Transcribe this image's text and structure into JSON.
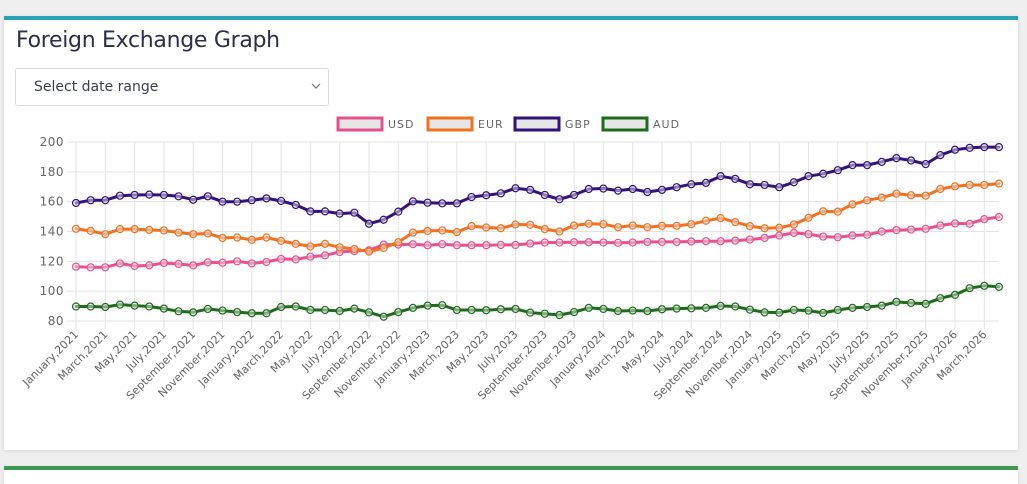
{
  "page": {
    "title": "Foreign Exchange Graph",
    "date_range_select": {
      "placeholder": "Select date range"
    },
    "colors": {
      "card_border_top": "#2aa3b5",
      "second_card_border_top": "#3d9a50",
      "background": "#efefef"
    }
  },
  "chart_data": {
    "type": "line",
    "title": "",
    "xlabel": "",
    "ylabel": "",
    "ylim": [
      80,
      200
    ],
    "yticks": [
      80,
      100,
      120,
      140,
      160,
      180,
      200
    ],
    "grid": true,
    "legend_position": "top",
    "x": [
      "January,2021",
      "February,2021",
      "March,2021",
      "April,2021",
      "May,2021",
      "June,2021",
      "July,2021",
      "August,2021",
      "September,2021",
      "October,2021",
      "November,2021",
      "December,2021",
      "January,2022",
      "February,2022",
      "March,2022",
      "April,2022",
      "May,2022",
      "June,2022",
      "July,2022",
      "August,2022",
      "September,2022",
      "October,2022",
      "November,2022",
      "December,2022",
      "January,2023",
      "February,2023",
      "March,2023",
      "April,2023",
      "May,2023",
      "June,2023",
      "July,2023",
      "August,2023",
      "September,2023",
      "October,2023",
      "November,2023",
      "December,2023",
      "January,2024",
      "February,2024",
      "March,2024",
      "April,2024",
      "May,2024",
      "June,2024",
      "July,2024",
      "August,2024",
      "September,2024",
      "October,2024",
      "November,2024",
      "December,2024",
      "January,2025",
      "February,2025",
      "March,2025",
      "April,2025",
      "May,2025",
      "June,2025",
      "July,2025",
      "August,2025",
      "September,2025",
      "October,2025",
      "November,2025",
      "December,2025",
      "January,2026",
      "February,2026",
      "March,2026",
      "April,2026"
    ],
    "tick_labels": [
      "January,2021",
      "March,2021",
      "May,2021",
      "July,2021",
      "September,2021",
      "November,2021",
      "January,2022",
      "March,2022",
      "May,2022",
      "July,2022",
      "September,2022",
      "November,2022",
      "January,2023",
      "March,2023",
      "May,2023",
      "July,2023",
      "September,2023",
      "November,2023",
      "January,2024",
      "March,2024",
      "May,2024",
      "July,2024",
      "September,2024",
      "November,2024",
      "January,2025",
      "March,2025",
      "May,2025",
      "July,2025",
      "September,2025",
      "November,2025",
      "January,2026",
      "March,2026"
    ],
    "series": [
      {
        "name": "USD",
        "color": "#e8518f",
        "values": [
          116.4,
          116,
          116,
          118.6,
          116.9,
          117.3,
          118.9,
          118.2,
          117.3,
          119.3,
          119.1,
          120,
          118.6,
          119.6,
          121.6,
          121.3,
          123.1,
          124,
          126.3,
          126.9,
          127.4,
          131.2,
          131.2,
          131.5,
          130.8,
          131.5,
          130.8,
          130.8,
          130.8,
          131,
          131,
          131.9,
          132.6,
          132.6,
          132.8,
          132.8,
          132.6,
          132.4,
          132.6,
          133,
          133,
          133,
          133.3,
          133.5,
          133.5,
          133.9,
          134.6,
          135.7,
          137.3,
          139.1,
          138.2,
          136.6,
          136.2,
          137.3,
          137.8,
          140,
          140.9,
          141.3,
          141.8,
          144,
          145.4,
          145.2,
          148.3,
          149.7
        ]
      },
      {
        "name": "EUR",
        "color": "#f07120",
        "values": [
          141.8,
          140.4,
          138.2,
          141.6,
          141.6,
          141.1,
          140.7,
          139.3,
          138.2,
          138.7,
          135.7,
          136,
          134.4,
          136,
          133.7,
          131.7,
          130,
          131.7,
          129.4,
          128.3,
          126.5,
          129,
          132.8,
          139.3,
          140.4,
          140.7,
          139.6,
          143.6,
          142.7,
          142.2,
          144.7,
          144.5,
          141.6,
          140,
          144,
          145.2,
          144.9,
          142.9,
          144,
          142.9,
          143.8,
          143.8,
          144.9,
          147.2,
          149,
          146.3,
          143.6,
          142.2,
          142.5,
          144.7,
          149.2,
          153.5,
          153.3,
          158.2,
          160.9,
          162.7,
          165.4,
          164.3,
          164,
          168.5,
          170.3,
          171.2,
          171.2,
          172.1
        ]
      },
      {
        "name": "GBP",
        "color": "#34127a",
        "values": [
          159.1,
          161,
          161,
          164,
          164.5,
          164.7,
          164.5,
          163.6,
          161.3,
          163.6,
          160,
          160,
          161,
          162.2,
          160.5,
          157.8,
          153.5,
          153.5,
          152,
          152.6,
          145.2,
          147.9,
          153.3,
          160.2,
          159.3,
          158.9,
          158.9,
          163.1,
          164.3,
          165.6,
          169,
          167.9,
          164.5,
          161.6,
          164.5,
          168.5,
          168.8,
          167.4,
          168.5,
          166.5,
          167.9,
          169.7,
          171.7,
          172.6,
          177.1,
          175.3,
          171.7,
          171.2,
          169.7,
          173,
          177.1,
          178.7,
          181.1,
          184.5,
          184.5,
          186.7,
          189.2,
          187.6,
          185.2,
          191.2,
          194.8,
          196.1,
          196.6,
          196.6
        ]
      },
      {
        "name": "AUD",
        "color": "#1f6b1c",
        "values": [
          89.7,
          89.7,
          89.4,
          91,
          90.3,
          89.7,
          88.3,
          86.5,
          85.8,
          88.1,
          87,
          86,
          85.2,
          85.2,
          89.4,
          89.7,
          87.4,
          87.4,
          86.7,
          88.3,
          85.8,
          82.9,
          86,
          88.8,
          90.3,
          90.6,
          87.4,
          87.4,
          87.2,
          87.9,
          88.1,
          85.6,
          84.9,
          84,
          86,
          88.8,
          88.1,
          86.7,
          87,
          86.7,
          87.9,
          88.3,
          88.5,
          88.8,
          90.1,
          89.7,
          87.6,
          85.8,
          85.6,
          87.4,
          87,
          85.4,
          87.4,
          88.8,
          89.4,
          90.3,
          92.8,
          92.1,
          91.5,
          95.3,
          97.5,
          102,
          103.6,
          102.9
        ]
      }
    ]
  }
}
